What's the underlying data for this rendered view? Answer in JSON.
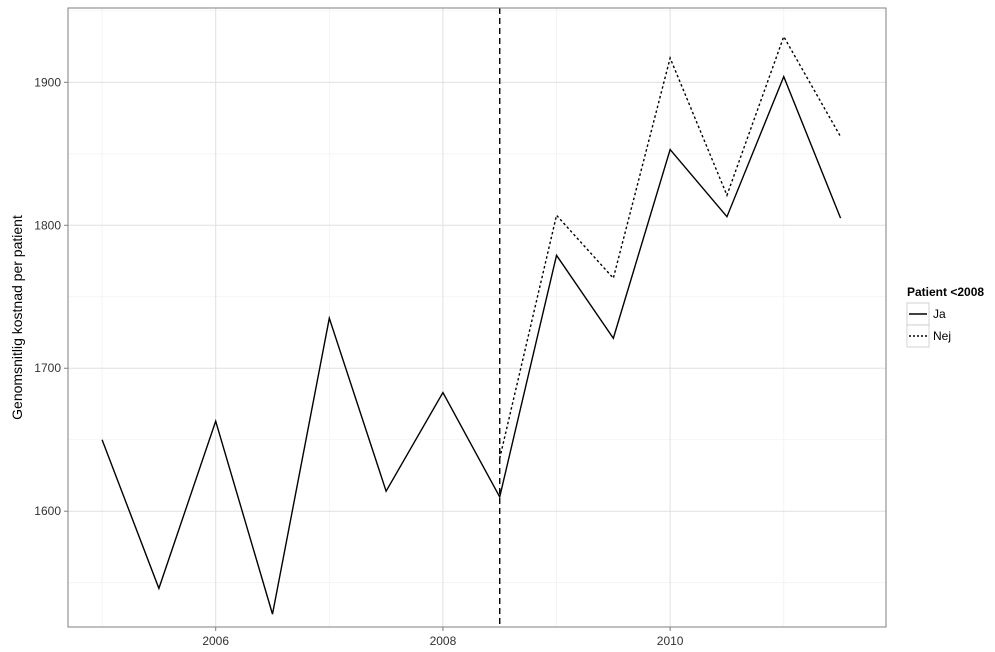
{
  "chart_data": {
    "type": "line",
    "title": "",
    "xlabel": "",
    "ylabel": "Genomsnitlig kostnad per patient",
    "xlim": [
      2004.7,
      2011.9
    ],
    "ylim": [
      1519,
      1952
    ],
    "x_ticks": [
      2006,
      2008,
      2010
    ],
    "x_tick_labels": [
      "2006",
      "2008",
      "2010"
    ],
    "y_ticks": [
      1600,
      1700,
      1800,
      1900
    ],
    "y_tick_labels": [
      "1600",
      "1700",
      "1800",
      "1900"
    ],
    "grid": true,
    "vline": {
      "x": 2008.5,
      "style": "dashed"
    },
    "legend": {
      "title": "Patient <2008",
      "position": "right"
    },
    "series": [
      {
        "name": "Ja",
        "style": "solid",
        "color": "#000000",
        "x": [
          2005.0,
          2005.5,
          2006.0,
          2006.5,
          2007.0,
          2007.5,
          2008.0,
          2008.5,
          2009.0,
          2009.5,
          2010.0,
          2010.5,
          2011.0,
          2011.5
        ],
        "y": [
          1650,
          1546,
          1663,
          1528,
          1735,
          1614,
          1683,
          1610,
          1779,
          1721,
          1853,
          1806,
          1904,
          1805
        ]
      },
      {
        "name": "Nej",
        "style": "dotted",
        "color": "#000000",
        "x": [
          2008.5,
          2009.0,
          2009.5,
          2010.0,
          2010.5,
          2011.0,
          2011.5
        ],
        "y": [
          1637,
          1807,
          1763,
          1917,
          1821,
          1932,
          1862
        ]
      }
    ]
  }
}
